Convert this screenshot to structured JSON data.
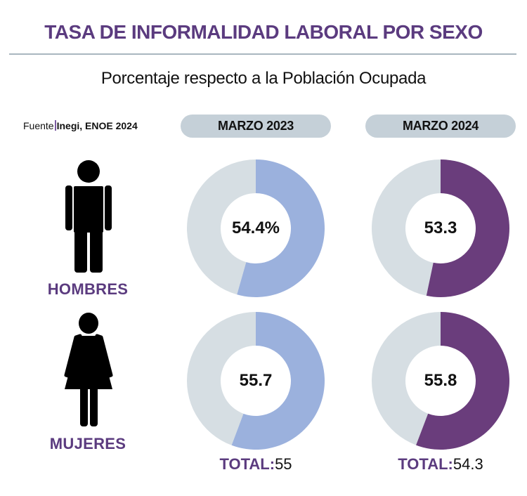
{
  "header": {
    "title": "TASA DE INFORMALIDAD LABORAL POR SEXO",
    "subtitle": "Porcentaje respecto a la Población Ocupada"
  },
  "source": {
    "label": "Fuente",
    "value": "Inegi, ENOE 2024"
  },
  "colors": {
    "accent": "#5b3b7f",
    "series_2023": "#9bb1dd",
    "series_2024": "#6a3d7c",
    "remainder": "#d6dee3",
    "pill": "#c5d0d8"
  },
  "icons": {
    "men": "man-icon",
    "women": "woman-icon"
  },
  "chart_data": {
    "type": "pie",
    "variant": "donut",
    "title": "TASA DE INFORMALIDAD LABORAL POR SEXO",
    "subtitle": "Porcentaje respecto a la Población Ocupada",
    "unit": "%",
    "columns": [
      "MARZO 2023",
      "MARZO 2024"
    ],
    "rows": [
      "HOMBRES",
      "MUJERES"
    ],
    "series": [
      {
        "name": "MARZO 2023",
        "values": [
          54.4,
          55.7
        ],
        "labels": [
          "54.4%",
          "55.7"
        ],
        "total_label": "TOTAL:",
        "total": "55"
      },
      {
        "name": "MARZO 2024",
        "values": [
          53.3,
          55.8
        ],
        "labels": [
          "53.3",
          "55.8"
        ],
        "total_label": "TOTAL:",
        "total": "54.3"
      }
    ],
    "max": 100
  }
}
